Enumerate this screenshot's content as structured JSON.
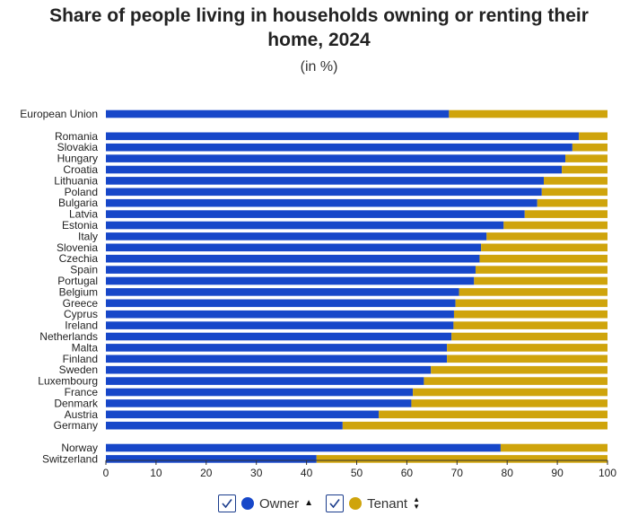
{
  "colors": {
    "owner": "#1747c9",
    "tenant": "#cfa40c",
    "axis": "#333333"
  },
  "legend": {
    "owner_label": "Owner",
    "tenant_label": "Tenant"
  },
  "chart_data": {
    "type": "bar",
    "orientation": "horizontal",
    "stacked": true,
    "title": "Share of people living in households owning or renting their home, 2024",
    "title_line1": "Share of people living in households owning or renting their",
    "title_line2": "home, 2024",
    "subtitle": "(in %)",
    "xlabel": "",
    "ylabel": "",
    "xlim": [
      0,
      100
    ],
    "xticks": [
      "0",
      "10",
      "20",
      "30",
      "40",
      "50",
      "60",
      "70",
      "80",
      "90",
      "100"
    ],
    "groups": [
      [
        "European Union"
      ],
      [
        "Romania",
        "Slovakia",
        "Hungary",
        "Croatia",
        "Lithuania",
        "Poland",
        "Bulgaria",
        "Latvia",
        "Estonia",
        "Italy",
        "Slovenia",
        "Czechia",
        "Spain",
        "Portugal",
        "Belgium",
        "Greece",
        "Cyprus",
        "Ireland",
        "Netherlands",
        "Malta",
        "Finland",
        "Sweden",
        "Luxembourg",
        "France",
        "Denmark",
        "Austria",
        "Germany"
      ],
      [
        "Norway",
        "Switzerland"
      ]
    ],
    "categories": [
      "European Union",
      "Romania",
      "Slovakia",
      "Hungary",
      "Croatia",
      "Lithuania",
      "Poland",
      "Bulgaria",
      "Latvia",
      "Estonia",
      "Italy",
      "Slovenia",
      "Czechia",
      "Spain",
      "Portugal",
      "Belgium",
      "Greece",
      "Cyprus",
      "Ireland",
      "Netherlands",
      "Malta",
      "Finland",
      "Sweden",
      "Luxembourg",
      "France",
      "Denmark",
      "Austria",
      "Germany",
      "Norway",
      "Switzerland"
    ],
    "series": [
      {
        "name": "Owner",
        "values": [
          68.4,
          94.3,
          93.0,
          91.6,
          90.9,
          87.3,
          86.9,
          86.0,
          83.5,
          79.3,
          75.9,
          74.8,
          74.5,
          73.7,
          73.4,
          70.4,
          69.7,
          69.4,
          69.3,
          68.9,
          68.0,
          68.0,
          64.8,
          63.4,
          61.2,
          60.9,
          54.4,
          47.2,
          78.7,
          42.0
        ]
      },
      {
        "name": "Tenant",
        "values": [
          31.6,
          5.7,
          7.0,
          8.4,
          9.1,
          12.7,
          13.1,
          14.0,
          16.5,
          20.7,
          24.1,
          25.2,
          25.5,
          26.3,
          26.6,
          29.6,
          30.3,
          30.6,
          30.7,
          31.1,
          32.0,
          32.0,
          35.2,
          36.6,
          38.8,
          39.1,
          45.6,
          52.8,
          21.3,
          58.0
        ]
      }
    ],
    "legend_position": "bottom"
  }
}
